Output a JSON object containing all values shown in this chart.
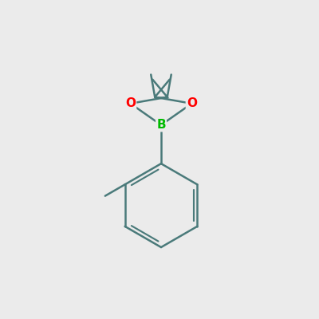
{
  "background_color": "#EBEBEB",
  "bond_color": "#4a7a7a",
  "bond_width": 1.8,
  "atom_B_color": "#00bb00",
  "atom_O_color": "#ff0000",
  "font_size_B": 11,
  "font_size_O": 11,
  "fig_width": 4.0,
  "fig_height": 4.0,
  "dpi": 100,
  "xlim": [
    0,
    10
  ],
  "ylim": [
    0,
    10
  ]
}
